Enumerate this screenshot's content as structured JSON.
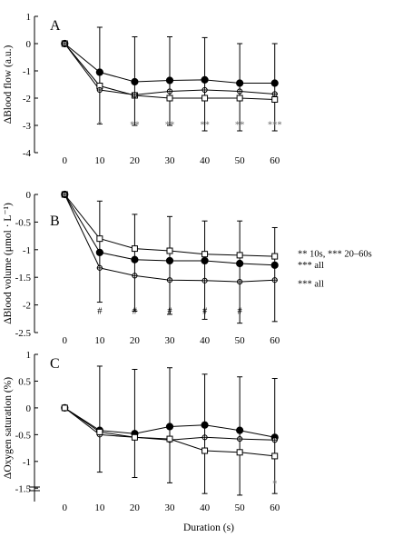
{
  "xlabel": "Duration (s)",
  "chart_data": [
    {
      "type": "line",
      "panel": "A",
      "ylabel": "ΔBlood flow (a.u.)",
      "x": [
        0,
        10,
        20,
        30,
        40,
        50,
        60
      ],
      "xlim": [
        -5,
        65
      ],
      "ylim": [
        -4,
        1
      ],
      "yticks": [
        {
          "v": 1,
          "t": "1"
        },
        {
          "v": 0,
          "t": "0"
        },
        {
          "v": -1,
          "t": "-1"
        },
        {
          "v": -2,
          "t": "-2"
        },
        {
          "v": -3,
          "t": "-3"
        },
        {
          "v": -4,
          "t": "-4"
        }
      ],
      "series": [
        {
          "marker": "filled-circle",
          "values": [
            0,
            -1.05,
            -1.4,
            -1.35,
            -1.33,
            -1.45,
            -1.45
          ],
          "err_up": [
            0,
            1.65,
            1.65,
            1.6,
            1.55,
            1.45,
            1.45
          ]
        },
        {
          "marker": "open-square",
          "values": [
            0,
            -1.55,
            -1.9,
            -2.0,
            -2.0,
            -2.0,
            -2.05
          ],
          "err_up": [
            0,
            0,
            0,
            0,
            0,
            0,
            0
          ]
        },
        {
          "marker": "open-circle",
          "values": [
            0,
            -1.7,
            -1.88,
            -1.75,
            -1.7,
            -1.75,
            -1.85
          ],
          "err_up": [
            0,
            0,
            0,
            0,
            0,
            0,
            0
          ]
        }
      ],
      "err_down": [
        0,
        1.25,
        1.1,
        1.0,
        1.2,
        1.2,
        1.15
      ],
      "annotations": [
        {
          "x": 10,
          "text": "*"
        },
        {
          "x": 20,
          "text": "**"
        },
        {
          "x": 30,
          "text": "**"
        },
        {
          "x": 40,
          "text": "**"
        },
        {
          "x": 50,
          "text": "**"
        },
        {
          "x": 60,
          "text": "***"
        }
      ],
      "annotation_y": -2.95
    },
    {
      "type": "line",
      "panel": "B",
      "ylabel": "ΔBlood volume (μmol · L⁻¹)",
      "x": [
        0,
        10,
        20,
        30,
        40,
        50,
        60
      ],
      "xlim": [
        -5,
        65
      ],
      "ylim": [
        -2.5,
        0
      ],
      "yticks": [
        {
          "v": 0,
          "t": "0"
        },
        {
          "v": -0.5,
          "t": "-0.5"
        },
        {
          "v": -1,
          "t": "-1"
        },
        {
          "v": -1.5,
          "t": "-1.5"
        },
        {
          "v": -2,
          "t": "-2"
        },
        {
          "v": -2.5,
          "t": "-2.5"
        }
      ],
      "series": [
        {
          "marker": "open-square",
          "values": [
            0,
            -0.8,
            -0.98,
            -1.02,
            -1.08,
            -1.1,
            -1.12
          ],
          "err_up": [
            0,
            0.68,
            0.62,
            0.62,
            0.6,
            0.62,
            0.52
          ]
        },
        {
          "marker": "filled-circle",
          "values": [
            0,
            -1.05,
            -1.18,
            -1.2,
            -1.2,
            -1.25,
            -1.28
          ],
          "err_up": [
            0,
            0,
            0,
            0,
            0,
            0,
            0
          ]
        },
        {
          "marker": "open-circle",
          "values": [
            0,
            -1.33,
            -1.47,
            -1.55,
            -1.56,
            -1.58,
            -1.55
          ],
          "err_up": [
            0,
            0,
            0,
            0,
            0,
            0,
            0
          ]
        }
      ],
      "err_down": [
        0,
        0.62,
        0.64,
        0.62,
        0.7,
        0.75,
        0.75
      ],
      "annotations": [
        {
          "x": 10,
          "text": "#"
        },
        {
          "x": 20,
          "text": "#"
        },
        {
          "x": 30,
          "text": "#"
        },
        {
          "x": 40,
          "text": "#"
        },
        {
          "x": 50,
          "text": "#"
        }
      ],
      "annotation_y": -2.1,
      "right_labels": [
        {
          "y": -1.06,
          "text": "** 10s, *** 20–60s"
        },
        {
          "y": -1.27,
          "text": "*** all"
        },
        {
          "y": -1.6,
          "text": "*** all"
        }
      ]
    },
    {
      "type": "line",
      "panel": "C",
      "ylabel": "ΔOxygen saturation (%)",
      "x": [
        0,
        10,
        20,
        30,
        40,
        50,
        60
      ],
      "xlim": [
        -5,
        65
      ],
      "ylim": [
        -1.75,
        1
      ],
      "axis_break": true,
      "yticks": [
        {
          "v": 1,
          "t": "1"
        },
        {
          "v": 0.5,
          "t": "0.5"
        },
        {
          "v": 0,
          "t": "0"
        },
        {
          "v": -0.5,
          "t": "-0.5"
        },
        {
          "v": -1,
          "t": "-1"
        },
        {
          "v": -1.5,
          "t": "-1.5"
        }
      ],
      "series": [
        {
          "marker": "filled-circle",
          "values": [
            0,
            -0.42,
            -0.48,
            -0.35,
            -0.32,
            -0.42,
            -0.55
          ],
          "err_up": [
            0,
            1.2,
            1.2,
            1.1,
            0.95,
            1.0,
            1.1
          ]
        },
        {
          "marker": "open-circle",
          "values": [
            0,
            -0.5,
            -0.55,
            -0.6,
            -0.55,
            -0.58,
            -0.6
          ],
          "err_up": [
            0,
            0,
            0,
            0,
            0,
            0,
            0
          ]
        },
        {
          "marker": "open-square",
          "values": [
            0,
            -0.45,
            -0.55,
            -0.58,
            -0.8,
            -0.83,
            -0.9
          ],
          "err_up": [
            0,
            0,
            0,
            0,
            0,
            0,
            0
          ]
        }
      ],
      "err_down": [
        0,
        0.7,
        0.75,
        0.8,
        0.8,
        0.8,
        0.7
      ],
      "annotations": [
        {
          "x": 60,
          "text": "*"
        }
      ],
      "annotation_y": -1.4
    }
  ]
}
